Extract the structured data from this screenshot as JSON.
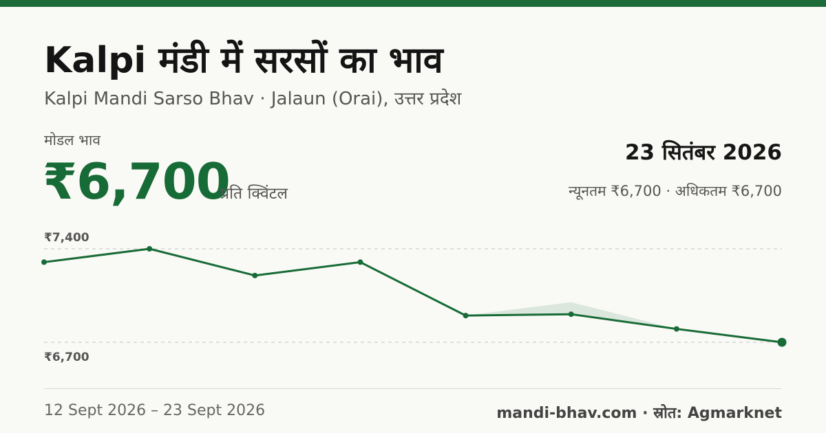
{
  "header": {
    "title": "Kalpi मंडी में सरसों का भाव",
    "subtitle": "Kalpi Mandi Sarso Bhav · Jalaun (Orai), उत्तर प्रदेश"
  },
  "price": {
    "label": "मोडल भाव",
    "value": "₹6,700",
    "unit": "प्रति क्विंटल"
  },
  "summary": {
    "date": "23 सितंबर 2026",
    "range": "न्यूनतम ₹6,700 · अधिकतम ₹6,700"
  },
  "footer": {
    "date_range": "12 Sept 2026 – 23 Sept 2026",
    "source": "mandi-bhav.com · स्रोत: Agmarknet"
  },
  "colors": {
    "brand": "#1d6b38",
    "line": "#176b36",
    "band": "#dbe6dd",
    "grid": "#c4c4c4"
  },
  "chart_data": {
    "type": "line",
    "ylim": [
      6700,
      7400
    ],
    "ytick_labels": [
      "₹7,400",
      "₹6,700"
    ],
    "grid": true,
    "series": [
      {
        "values": [
          7300,
          7400,
          7200,
          7300,
          6900,
          6910,
          6800,
          6700
        ]
      }
    ],
    "band": {
      "lower": [
        7300,
        7400,
        7200,
        7300,
        6900,
        6910,
        6800,
        6700
      ],
      "upper": [
        7300,
        7400,
        7200,
        7300,
        6900,
        7000,
        6800,
        6700
      ]
    }
  }
}
